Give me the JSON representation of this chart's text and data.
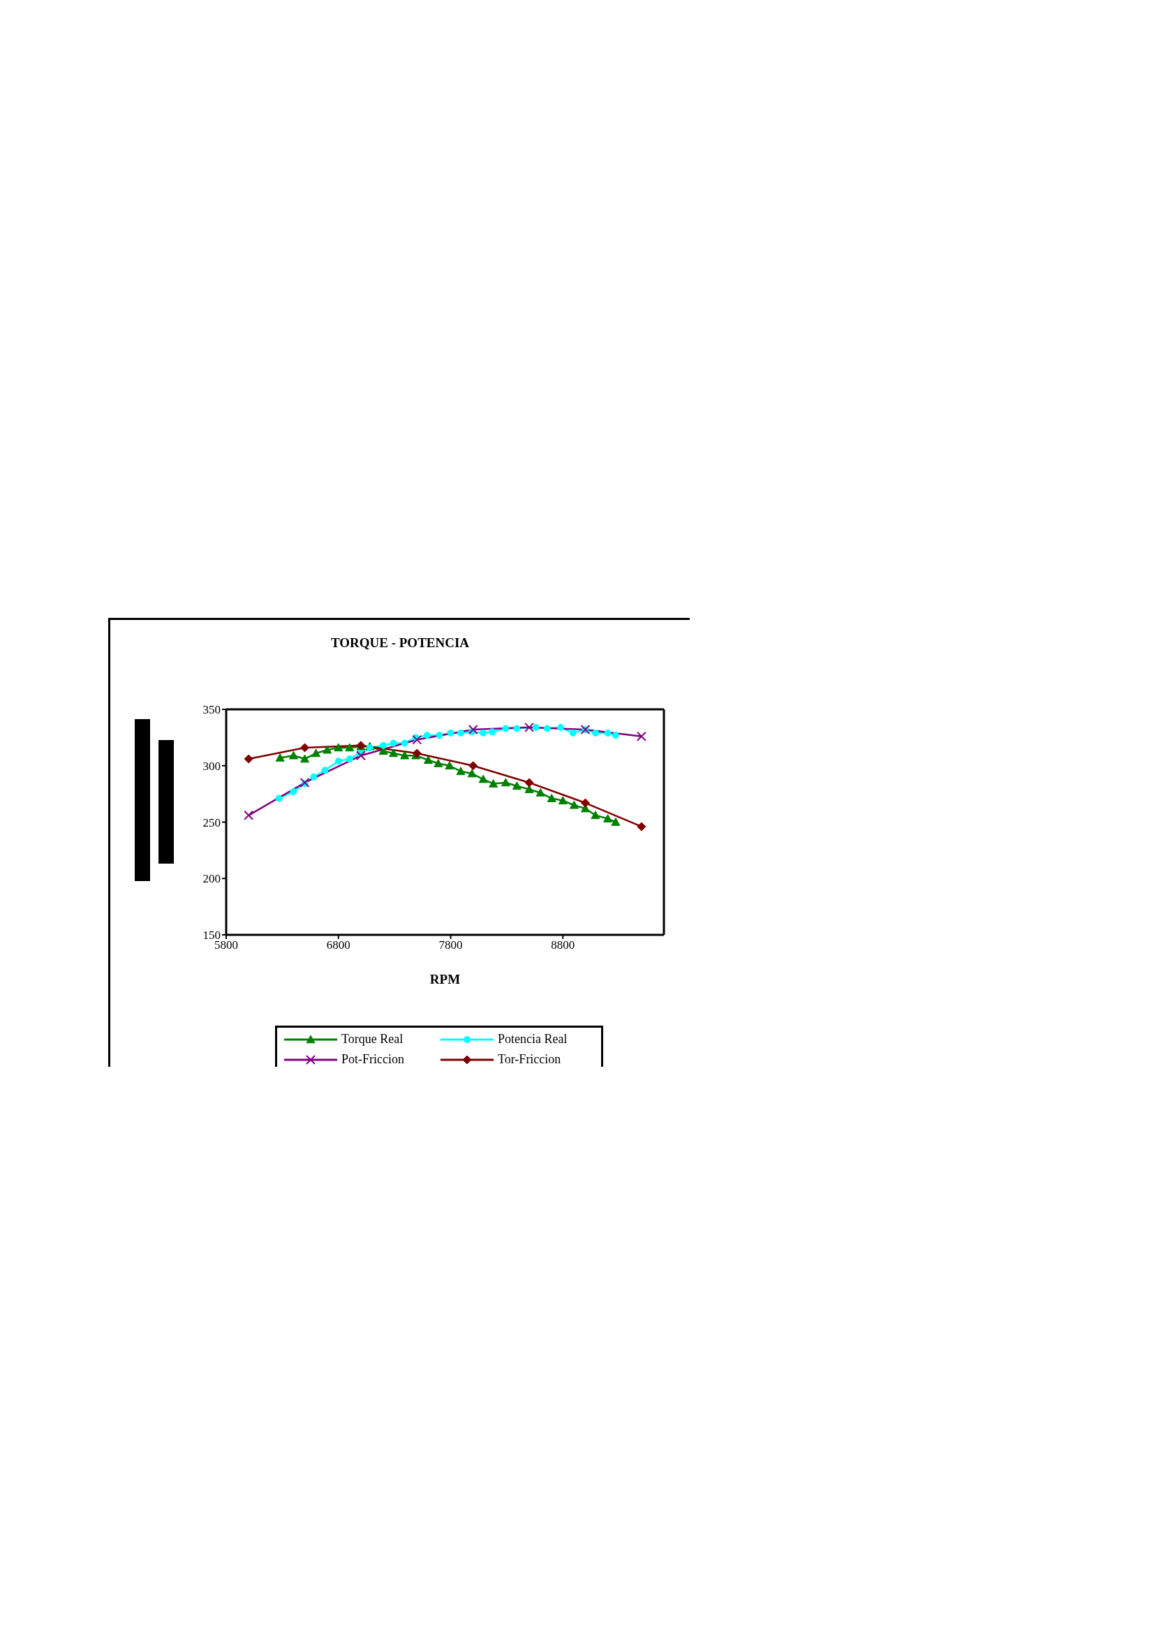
{
  "chart_data": {
    "type": "line",
    "title": "TORQUE - POTENCIA",
    "xlabel": "RPM",
    "xlim": [
      5800,
      9700
    ],
    "xticks": [
      5800,
      6800,
      7800,
      8800
    ],
    "ylim": [
      150,
      350
    ],
    "yticks": [
      150,
      200,
      250,
      300,
      350
    ],
    "legend": "bottom",
    "line_style": "solid",
    "series": [
      {
        "name": "Torque Real",
        "color": "#008000",
        "marker": "triangle",
        "x": [
          6280,
          6400,
          6500,
          6600,
          6700,
          6800,
          6900,
          7000,
          7080,
          7200,
          7290,
          7390,
          7490,
          7600,
          7690,
          7790,
          7890,
          7990,
          8090,
          8180,
          8290,
          8390,
          8500,
          8600,
          8700,
          8800,
          8900,
          9000,
          9090,
          9200,
          9270
        ],
        "values": [
          307,
          309,
          306,
          311,
          314,
          316,
          316,
          317,
          317,
          313,
          311,
          309,
          309,
          305,
          302,
          300,
          295,
          293,
          288,
          284,
          285,
          282,
          279,
          276,
          271,
          269,
          265,
          262,
          256,
          253,
          250
        ]
      },
      {
        "name": "Potencia Real",
        "color": "#00ffff",
        "marker": "circle",
        "x": [
          6270,
          6400,
          6500,
          6580,
          6680,
          6800,
          6900,
          6990,
          7080,
          7200,
          7290,
          7390,
          7490,
          7590,
          7700,
          7800,
          7890,
          7990,
          8090,
          8170,
          8290,
          8390,
          8560,
          8660,
          8780,
          8890,
          9000,
          9090,
          9200,
          9270
        ],
        "values": [
          271,
          277,
          284,
          290,
          296,
          304,
          306,
          311,
          316,
          318,
          320,
          320,
          325,
          327,
          327,
          329,
          329,
          330,
          329,
          330,
          333,
          333,
          334,
          333,
          334,
          329,
          332,
          329,
          329,
          327
        ]
      },
      {
        "name": "Pot-Friccion",
        "color": "#800080",
        "marker": "cross",
        "x": [
          6000,
          6500,
          7000,
          7500,
          8000,
          8500,
          9000,
          9500
        ],
        "values": [
          256,
          285,
          309,
          323,
          332,
          334,
          332,
          326
        ]
      },
      {
        "name": "Tor-Friccion",
        "color": "#800000",
        "marker": "diamond",
        "x": [
          6000,
          6500,
          7000,
          7500,
          8000,
          8500,
          9000,
          9500
        ],
        "values": [
          306,
          316,
          318,
          311,
          300,
          285,
          267,
          246
        ]
      }
    ]
  }
}
